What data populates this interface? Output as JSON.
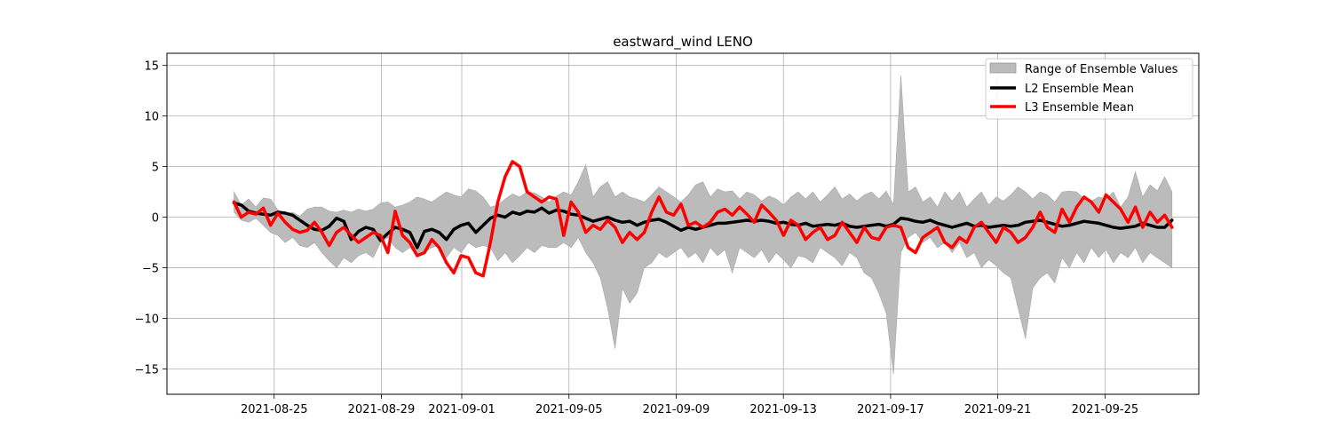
{
  "chart_data": {
    "type": "line",
    "title": "eastward_wind LENO",
    "xlabel": "",
    "ylabel": "",
    "grid": true,
    "legend_position": "top-right",
    "x_start": "2021-08-23T12:00",
    "x_end": "2021-09-27T12:00",
    "xlim": [
      "2021-08-21T00:00",
      "2021-09-28T12:00"
    ],
    "ylim": [
      -17.5,
      16.2
    ],
    "x_tick_labels": [
      "2021-08-25",
      "2021-08-29",
      "2021-09-01",
      "2021-09-05",
      "2021-09-09",
      "2021-09-13",
      "2021-09-17",
      "2021-09-21",
      "2021-09-25"
    ],
    "y_tick_labels": [
      "15",
      "10",
      "5",
      "0",
      "−5",
      "−10",
      "−15"
    ],
    "y_ticks": [
      15,
      10,
      5,
      0,
      -5,
      -10,
      -15
    ],
    "series": [
      {
        "name": "Range of Ensemble Values",
        "kind": "band",
        "color": "#bbbbbb",
        "upper": [
          2.5,
          1.2,
          1.8,
          1.0,
          1.9,
          1.8,
          0.7,
          0.3,
          0.5,
          0.1,
          0.8,
          1.0,
          1.0,
          0.6,
          0.5,
          0.7,
          0.5,
          0.8,
          0.6,
          0.8,
          1.4,
          1.5,
          1.0,
          1.2,
          1.5,
          2.0,
          1.8,
          1.5,
          2.0,
          2.5,
          2.2,
          2.0,
          2.8,
          2.6,
          2.0,
          1.0,
          1.2,
          1.8,
          2.3,
          2.0,
          2.5,
          2.4,
          2.0,
          1.5,
          2.1,
          2.5,
          2.2,
          3.5,
          5.2,
          2.0,
          3.0,
          3.5,
          2.0,
          2.5,
          2.0,
          1.8,
          1.5,
          2.2,
          3.0,
          2.5,
          2.0,
          1.5,
          2.2,
          3.2,
          3.5,
          2.0,
          2.8,
          2.5,
          2.6,
          1.8,
          2.5,
          2.2,
          1.6,
          2.1,
          1.8,
          1.2,
          2.0,
          2.5,
          1.8,
          2.5,
          1.5,
          2.2,
          3.0,
          1.8,
          2.3,
          1.6,
          2.2,
          2.5,
          1.8,
          2.6,
          1.2,
          14.0,
          2.5,
          3.0,
          1.5,
          2.0,
          1.0,
          2.5,
          1.6,
          2.5,
          1.0,
          1.8,
          2.5,
          1.2,
          2.0,
          1.6,
          2.2,
          3.0,
          2.5,
          1.8,
          2.5,
          2.2,
          1.5,
          2.5,
          2.6,
          2.5,
          1.8,
          1.6,
          2.0,
          1.8,
          2.5,
          1.0,
          2.0,
          4.5,
          2.0,
          3.2,
          2.6,
          4.0,
          2.5
        ],
        "lower": [
          0.5,
          -0.3,
          -0.5,
          -0.1,
          -0.8,
          -1.5,
          -1.8,
          -2.5,
          -2.0,
          -2.8,
          -3.0,
          -2.5,
          -3.5,
          -4.3,
          -5.0,
          -4.0,
          -4.5,
          -3.8,
          -3.5,
          -4.0,
          -2.5,
          -2.0,
          -3.0,
          -3.5,
          -3.0,
          -3.8,
          -3.5,
          -3.0,
          -2.8,
          -4.0,
          -3.0,
          -3.5,
          -2.5,
          -3.0,
          -2.8,
          -3.0,
          -4.3,
          -3.5,
          -4.5,
          -3.8,
          -3.0,
          -3.5,
          -2.8,
          -3.0,
          -3.0,
          -2.5,
          -3.0,
          -2.0,
          -3.5,
          -4.5,
          -6.0,
          -9.0,
          -13.0,
          -7.0,
          -8.5,
          -7.5,
          -5.0,
          -4.5,
          -3.5,
          -4.0,
          -3.5,
          -3.0,
          -4.0,
          -3.5,
          -4.5,
          -3.0,
          -3.8,
          -3.2,
          -5.5,
          -3.0,
          -3.5,
          -4.0,
          -3.2,
          -4.5,
          -3.5,
          -4.2,
          -5.0,
          -3.8,
          -4.0,
          -4.5,
          -3.0,
          -3.5,
          -4.0,
          -4.8,
          -3.5,
          -4.0,
          -5.5,
          -6.0,
          -7.5,
          -9.5,
          -15.5,
          -3.5,
          -2.0,
          -1.5,
          -2.5,
          -2.0,
          -3.0,
          -2.5,
          -3.5,
          -2.5,
          -4.0,
          -3.5,
          -5.0,
          -4.2,
          -4.8,
          -5.5,
          -6.0,
          -9.0,
          -12.0,
          -7.0,
          -6.0,
          -5.5,
          -6.5,
          -4.0,
          -5.0,
          -3.5,
          -4.5,
          -3.0,
          -4.0,
          -3.2,
          -4.5,
          -3.5,
          -4.0,
          -3.0,
          -4.5,
          -3.5,
          -4.0,
          -4.5,
          -5.0
        ]
      },
      {
        "name": "L2 Ensemble Mean",
        "kind": "line",
        "color": "#000000",
        "values": [
          1.4,
          1.2,
          0.6,
          0.4,
          0.3,
          0.2,
          0.5,
          0.4,
          0.2,
          -0.3,
          -0.8,
          -1.2,
          -1.3,
          -0.9,
          -0.1,
          -0.4,
          -2.2,
          -1.4,
          -1.0,
          -1.2,
          -2.3,
          -1.6,
          -1.0,
          -1.2,
          -1.5,
          -3.0,
          -1.4,
          -1.2,
          -1.5,
          -2.2,
          -1.2,
          -0.8,
          -0.6,
          -1.5,
          -0.8,
          -0.1,
          0.2,
          0.0,
          0.5,
          0.3,
          0.6,
          0.5,
          0.9,
          0.4,
          0.7,
          0.6,
          0.3,
          0.2,
          -0.1,
          -0.4,
          -0.2,
          0.0,
          -0.3,
          -0.5,
          -0.4,
          -0.8,
          -0.5,
          -0.3,
          -0.2,
          -0.5,
          -0.9,
          -1.3,
          -1.0,
          -1.2,
          -1.0,
          -0.8,
          -0.6,
          -0.6,
          -0.5,
          -0.4,
          -0.3,
          -0.4,
          -0.3,
          -0.4,
          -0.6,
          -0.5,
          -0.7,
          -0.8,
          -0.6,
          -0.9,
          -0.8,
          -0.7,
          -0.8,
          -0.6,
          -0.9,
          -1.0,
          -0.9,
          -0.8,
          -0.7,
          -0.9,
          -0.7,
          -0.1,
          -0.2,
          -0.4,
          -0.5,
          -0.3,
          -0.6,
          -0.8,
          -1.0,
          -0.8,
          -0.6,
          -0.9,
          -0.8,
          -1.0,
          -0.9,
          -0.8,
          -0.9,
          -0.8,
          -0.5,
          -0.4,
          -0.3,
          -0.5,
          -0.7,
          -0.9,
          -0.8,
          -0.6,
          -0.4,
          -0.5,
          -0.6,
          -0.8,
          -1.0,
          -1.1,
          -1.0,
          -0.9,
          -0.6,
          -0.8,
          -1.0,
          -1.0,
          -0.3
        ]
      },
      {
        "name": "L3 Ensemble Mean",
        "kind": "line",
        "color": "#ff0000",
        "values": [
          1.5,
          0.0,
          0.5,
          0.3,
          0.9,
          -0.8,
          0.4,
          -0.5,
          -1.2,
          -1.5,
          -1.3,
          -0.5,
          -1.5,
          -2.8,
          -1.5,
          -1.0,
          -1.8,
          -2.5,
          -2.0,
          -1.5,
          -1.8,
          -3.5,
          0.6,
          -1.8,
          -2.5,
          -3.8,
          -3.5,
          -2.2,
          -3.0,
          -4.5,
          -5.5,
          -3.8,
          -4.0,
          -5.5,
          -5.8,
          -2.5,
          1.5,
          4.0,
          5.5,
          5.0,
          2.5,
          2.0,
          1.5,
          2.0,
          1.8,
          -1.8,
          1.5,
          0.5,
          -1.5,
          -0.8,
          -1.2,
          -0.3,
          -1.0,
          -2.5,
          -1.5,
          -2.2,
          -1.5,
          0.5,
          2.0,
          0.5,
          0.2,
          1.3,
          -0.8,
          -0.5,
          -1.0,
          -0.5,
          0.5,
          0.8,
          0.2,
          1.0,
          0.3,
          -0.5,
          1.2,
          0.5,
          -0.3,
          -1.8,
          -0.3,
          -0.8,
          -2.2,
          -1.5,
          -1.0,
          -2.2,
          -1.8,
          -0.5,
          -1.5,
          -2.5,
          -1.0,
          -2.0,
          -2.2,
          -1.0,
          -0.8,
          -1.0,
          -3.0,
          -3.5,
          -2.0,
          -1.5,
          -1.0,
          -2.5,
          -3.0,
          -2.0,
          -2.5,
          -1.0,
          -0.5,
          -1.5,
          -2.5,
          -1.0,
          -1.5,
          -2.5,
          -2.0,
          -1.0,
          0.5,
          -1.0,
          -1.5,
          0.8,
          -0.5,
          1.0,
          2.0,
          1.5,
          0.5,
          2.2,
          1.5,
          0.8,
          -0.5,
          1.0,
          -1.0,
          0.5,
          -0.5,
          0.2,
          -1.0
        ]
      }
    ]
  }
}
